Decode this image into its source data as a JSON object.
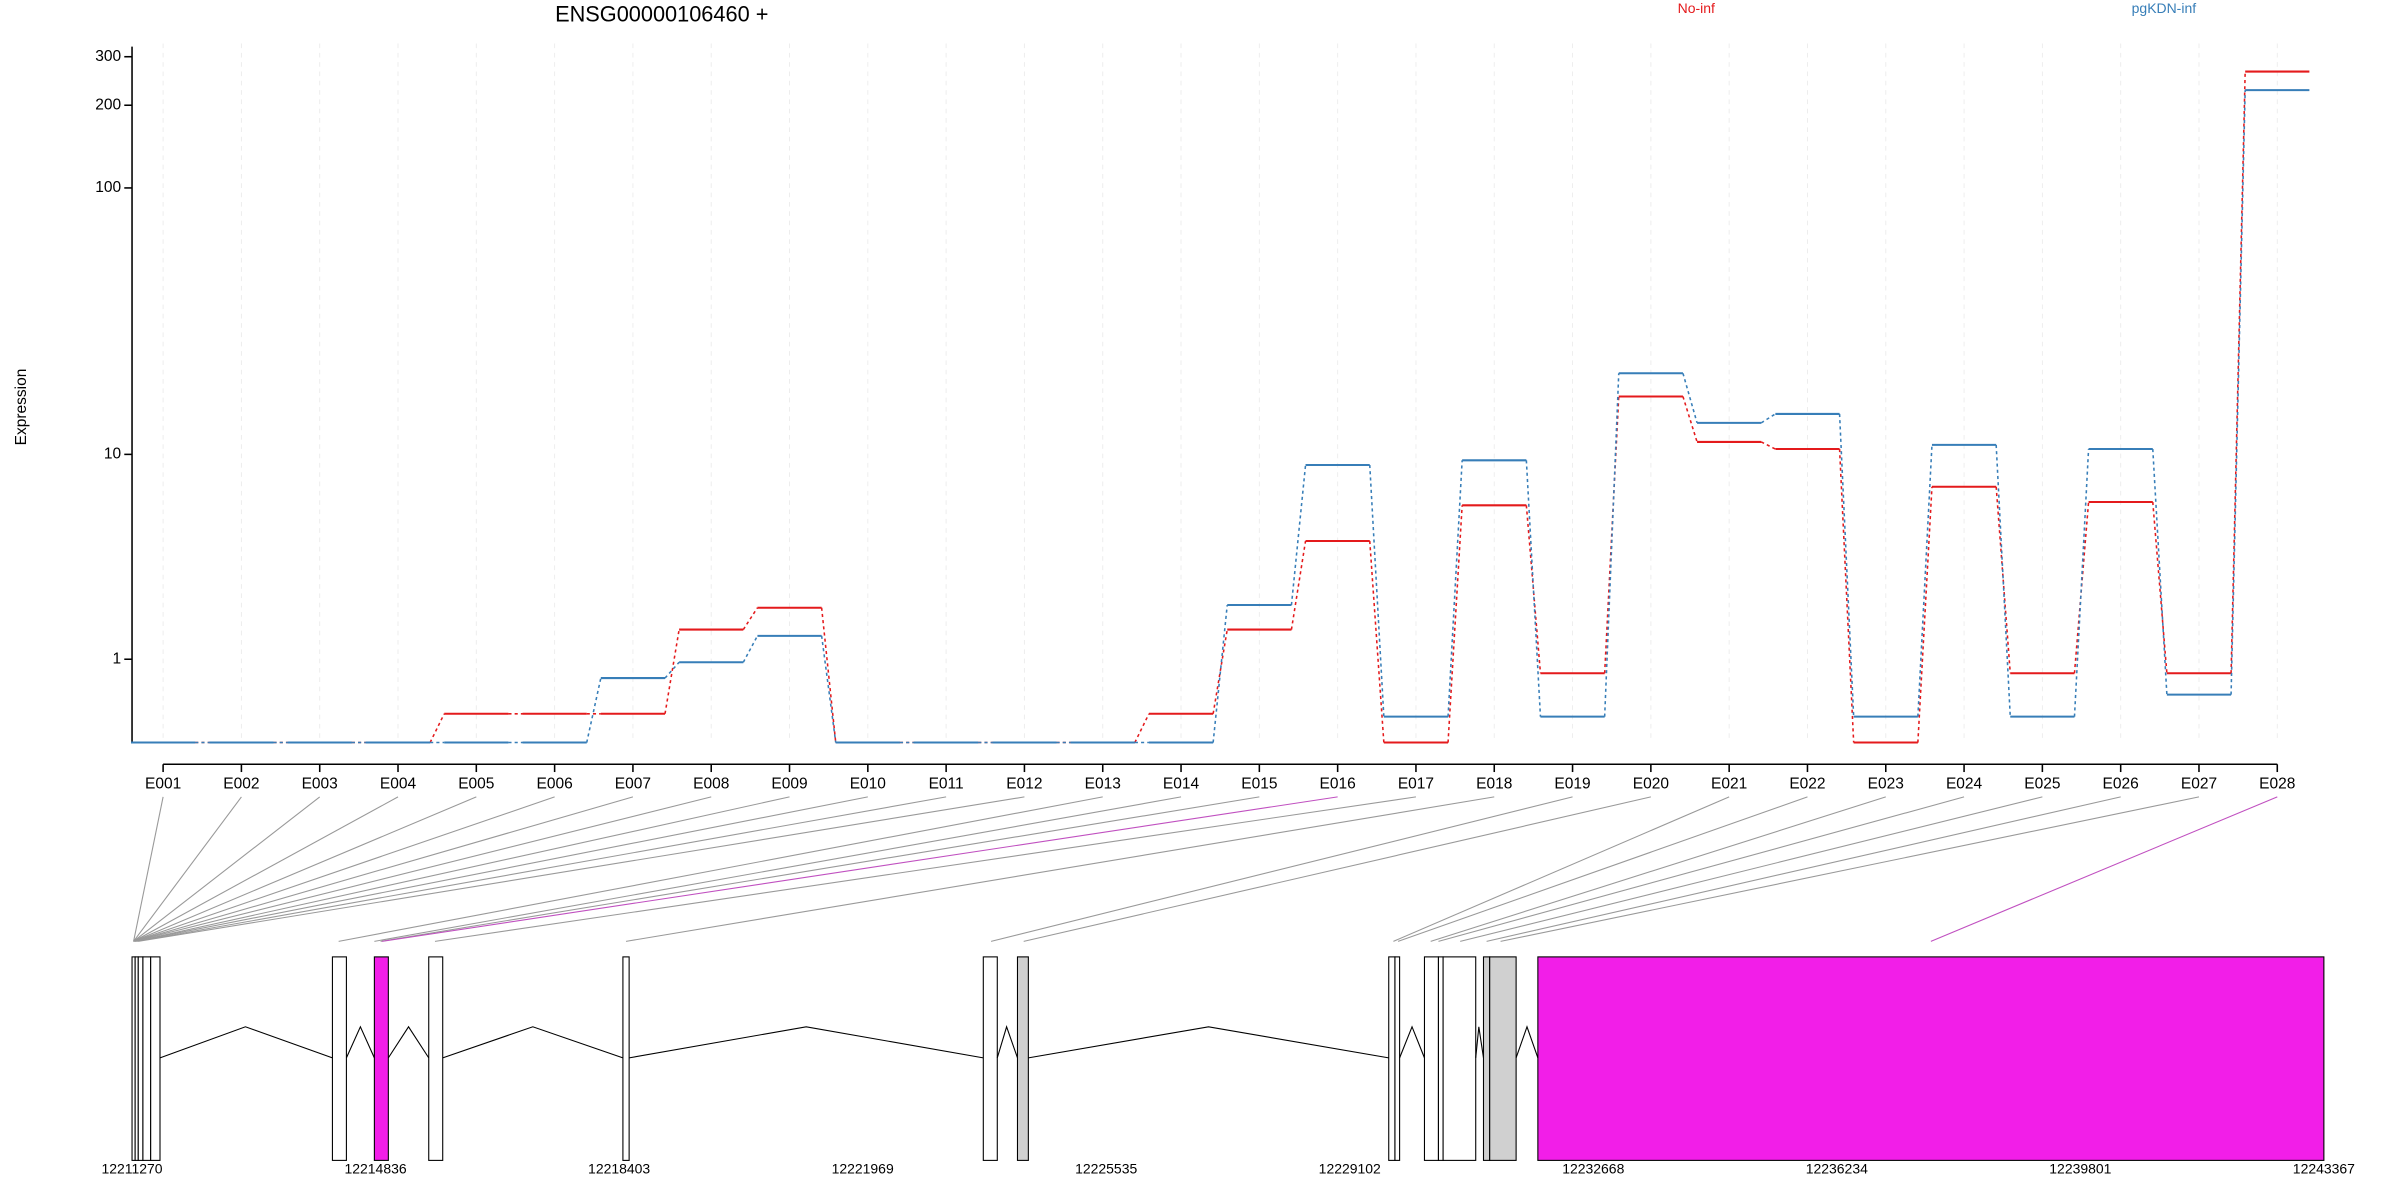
{
  "chart_data": {
    "type": "step",
    "title": "ENSG00000106460 +",
    "y_label": "Expression",
    "categories": [
      "E001",
      "E002",
      "E003",
      "E004",
      "E005",
      "E006",
      "E007",
      "E008",
      "E009",
      "E010",
      "E011",
      "E012",
      "E013",
      "E014",
      "E015",
      "E016",
      "E017",
      "E018",
      "E019",
      "E020",
      "E021",
      "E022",
      "E023",
      "E024",
      "E025",
      "E026",
      "E027",
      "E028"
    ],
    "series": [
      {
        "name": "No-inf",
        "color": "#e41a1c",
        "values": [
          0,
          0,
          0,
          0,
          0.27,
          0.27,
          0.27,
          1.56,
          2.07,
          0,
          0,
          0,
          0,
          0.27,
          1.56,
          4.35,
          0,
          6.2,
          0.78,
          16.8,
          11.2,
          10.5,
          0,
          7.4,
          0.78,
          6.4,
          0.78,
          265
        ]
      },
      {
        "name": "pgKDN-inf",
        "color": "#377eb8",
        "values": [
          0,
          0,
          0,
          0,
          0,
          0,
          0.71,
          0.95,
          1.43,
          0,
          0,
          0,
          0,
          0,
          2.14,
          9.07,
          0.24,
          9.47,
          0.24,
          20.6,
          13.3,
          14.4,
          0.24,
          10.9,
          0.24,
          10.5,
          0.49,
          227
        ]
      }
    ],
    "yscale": "log1p",
    "ylim": [
      0,
      335
    ],
    "yticks": [
      1,
      10,
      100,
      200,
      300
    ],
    "grid": true,
    "gene_model": {
      "xlim": [
        12211270,
        12243367
      ],
      "xticks": [
        12211270,
        12214836,
        12218403,
        12221969,
        12225535,
        12229102,
        12232668,
        12236234,
        12239801,
        12243367
      ]
    }
  }
}
